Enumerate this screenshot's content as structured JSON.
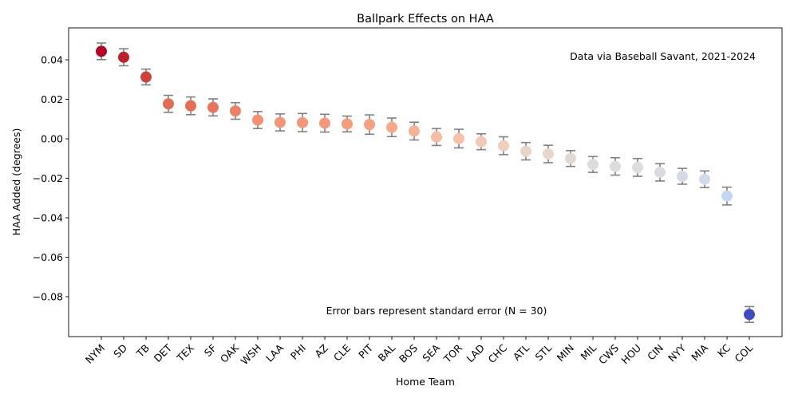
{
  "chart_data": {
    "type": "scatter",
    "title": "Ballpark Effects on HAA",
    "xlabel": "Home Team",
    "ylabel": "HAA Added (degrees)",
    "ylim": [
      -0.1,
      0.055
    ],
    "yticks": [
      0.04,
      0.02,
      0.0,
      -0.02,
      -0.04,
      -0.06,
      -0.08
    ],
    "ytick_labels": [
      "0.04",
      "0.02",
      "0.00",
      "−0.02",
      "−0.04",
      "−0.06",
      "−0.08"
    ],
    "grid": false,
    "annotations": [
      {
        "text": "Data via Baseball Savant, 2021-2024",
        "placement": "top-right"
      },
      {
        "text": "Error bars represent standard error (N = 30)",
        "placement": "bottom-center"
      }
    ],
    "colormap": "coolwarm",
    "error_bar_color": "#808080",
    "categories": [
      "NYM",
      "SD",
      "TB",
      "DET",
      "TEX",
      "SF",
      "OAK",
      "WSH",
      "LAA",
      "PHI",
      "AZ",
      "CLE",
      "PIT",
      "BAL",
      "BOS",
      "SEA",
      "TOR",
      "LAD",
      "CHC",
      "ATL",
      "STL",
      "MIN",
      "MIL",
      "CWS",
      "HOU",
      "CIN",
      "NYY",
      "MIA",
      "KC",
      "COL"
    ],
    "values": [
      0.0443,
      0.0413,
      0.0313,
      0.0177,
      0.0167,
      0.0159,
      0.0141,
      0.0095,
      0.0083,
      0.0082,
      0.0079,
      0.0075,
      0.0072,
      0.0058,
      0.0039,
      0.0009,
      0.0001,
      -0.0015,
      -0.0035,
      -0.0063,
      -0.0077,
      -0.01,
      -0.013,
      -0.014,
      -0.0145,
      -0.017,
      -0.019,
      -0.0205,
      -0.029,
      -0.089
    ],
    "errors": [
      0.0042,
      0.0043,
      0.004,
      0.0043,
      0.0045,
      0.0043,
      0.0042,
      0.0043,
      0.0043,
      0.0046,
      0.0045,
      0.004,
      0.0049,
      0.0047,
      0.0045,
      0.0043,
      0.0047,
      0.004,
      0.0045,
      0.0044,
      0.0044,
      0.004,
      0.004,
      0.0044,
      0.0045,
      0.0044,
      0.004,
      0.0042,
      0.0045,
      0.004
    ],
    "colors": [
      "#b40426",
      "#bd1f2d",
      "#cd423b",
      "#e36c55",
      "#e46e56",
      "#e7745b",
      "#ec8165",
      "#f29072",
      "#f39577",
      "#f39778",
      "#f4987a",
      "#f59c7d",
      "#f5a081",
      "#f7a889",
      "#f7b194",
      "#f6bda2",
      "#f5c1a9",
      "#f2c9b4",
      "#efcebd",
      "#ead4c8",
      "#e8d6cc",
      "#e3d9d3",
      "#dedcdb",
      "#dddcdc",
      "#dcdddd",
      "#d8dce2",
      "#d5dbe5",
      "#d1dae9",
      "#c5d6f2",
      "#3b4cc0"
    ]
  }
}
